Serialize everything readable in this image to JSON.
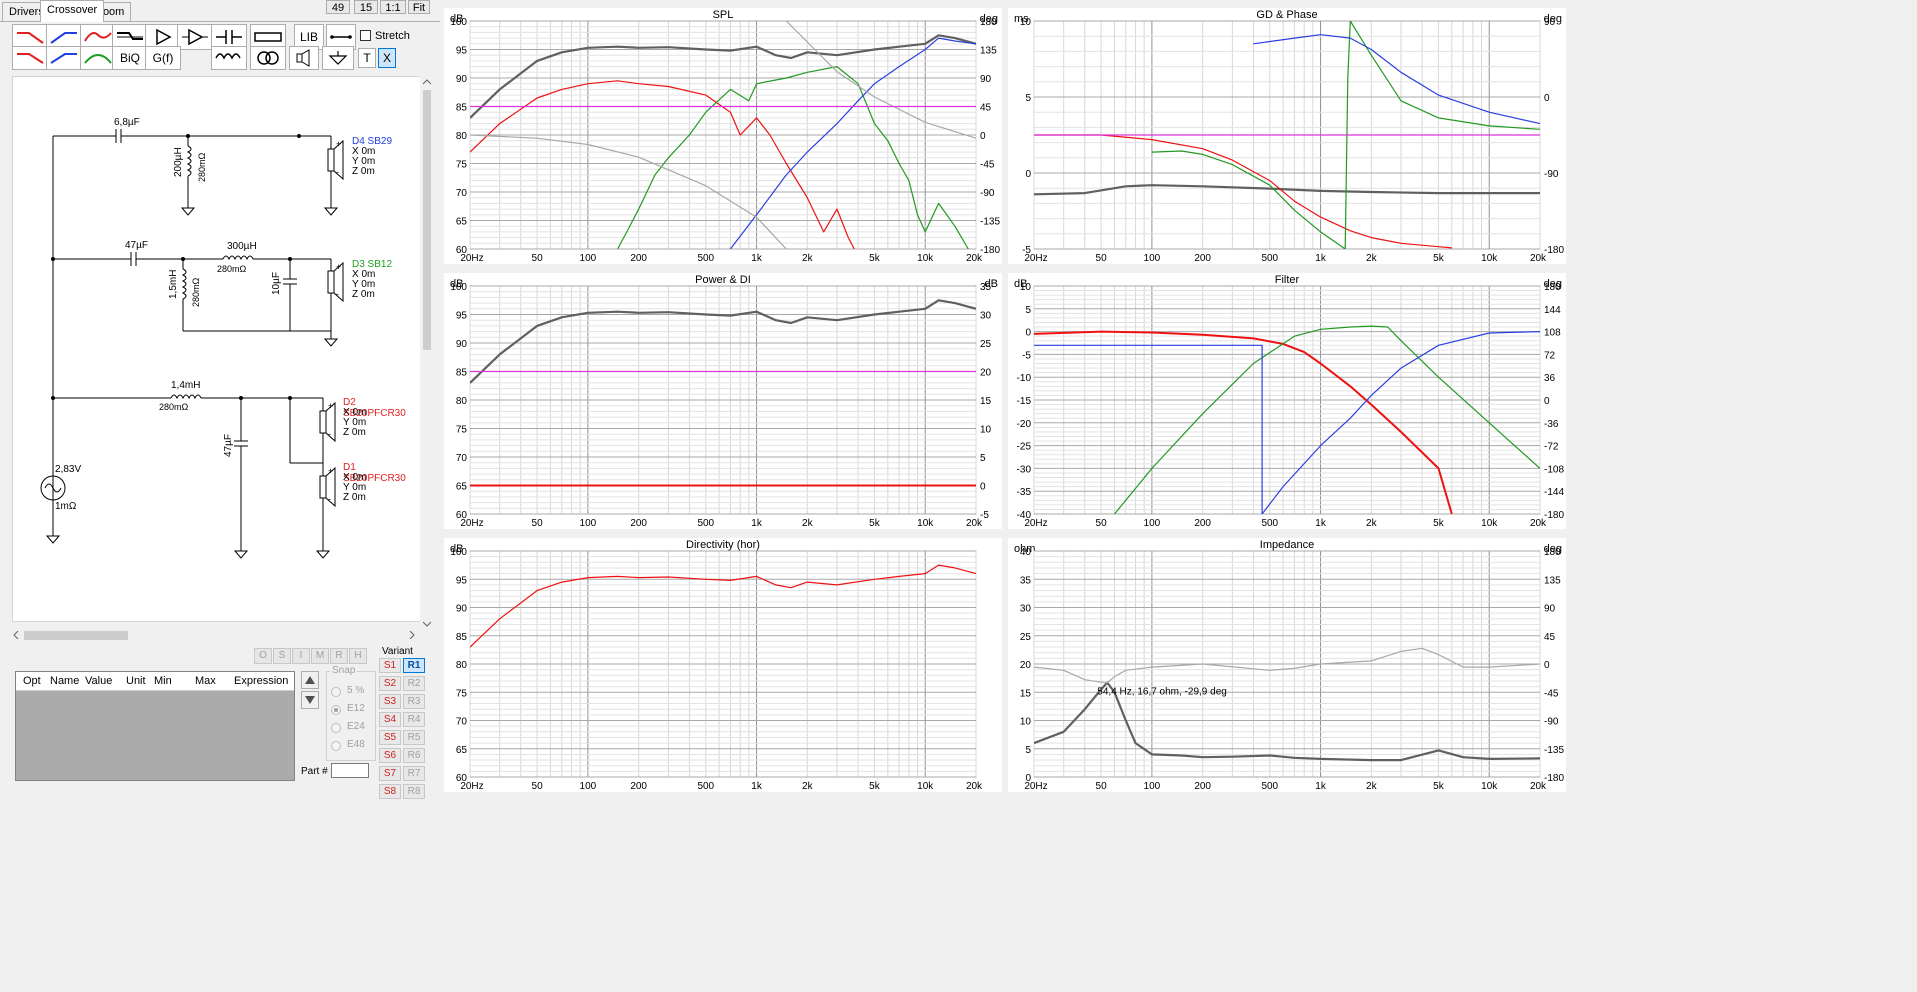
{
  "tabs": [
    "Drivers",
    "Crossover",
    "Room"
  ],
  "active_tab": "Crossover",
  "top_buttons": [
    "49",
    "15",
    "1:1",
    "Fit"
  ],
  "toolbar": {
    "lib": "LIB",
    "biq": "BiQ",
    "gf": "G(f)",
    "t": "T",
    "x": "X",
    "stretch": "Stretch"
  },
  "schematic": {
    "c1": "6,8µF",
    "l1": "200µH",
    "l1r": "280mΩ",
    "d4_name": "D4 SB29",
    "c2": "47µF",
    "l2": "300µH",
    "l2r": "280mΩ",
    "l3": "1,5mH",
    "l3r": "280mΩ",
    "c3": "10µF",
    "d3_name": "D3 SB12",
    "l4": "1,4mH",
    "l4r": "280mΩ",
    "c4": "47µF",
    "d2_name": "D2 SB20PFCR30",
    "d1_name": "D1 SB20PFCR30",
    "src_v": "2,83V",
    "src_r": "1mΩ",
    "xyz": [
      "X 0m",
      "Y 0m",
      "Z 0m"
    ],
    "plus": "+",
    "minus": "-"
  },
  "opt_buttons": [
    "O",
    "S",
    "I",
    "M",
    "R",
    "H"
  ],
  "table_headers": [
    "Opt",
    "Name",
    "Value",
    "Unit",
    "Min",
    "Max",
    "Expression"
  ],
  "snap": {
    "label": "Snap",
    "options": [
      "5 %",
      "E12",
      "E24",
      "E48"
    ],
    "selected": "E12"
  },
  "part_label": "Part #",
  "variant": {
    "label": "Variant",
    "s": [
      "S1",
      "S2",
      "S3",
      "S4",
      "S5",
      "S6",
      "S7",
      "S8"
    ],
    "r": [
      "R1",
      "R2",
      "R3",
      "R4",
      "R5",
      "R6",
      "R7",
      "R8"
    ],
    "selected": "R1"
  },
  "x_ticks": [
    "20Hz",
    "50",
    "100",
    "200",
    "500",
    "1k",
    "2k",
    "5k",
    "10k",
    "20k"
  ],
  "colors": {
    "gray": "#606060",
    "red": "#ee1111",
    "green": "#229922",
    "blue": "#2b3fe0",
    "magenta": "#dd33dd",
    "lightgray": "#a8a8a8"
  },
  "chart_data": [
    {
      "type": "line",
      "title": "SPL",
      "left_unit": "dB",
      "right_unit": "deg",
      "xlim": [
        20,
        20000
      ],
      "x_scale": "log",
      "ylim": [
        60,
        100
      ],
      "y2lim": [
        -180,
        180
      ],
      "y_ticks": [
        "100",
        "95",
        "90",
        "85",
        "80",
        "75",
        "70",
        "65",
        "60"
      ],
      "y2_ticks": [
        "180",
        "135",
        "90",
        "45",
        "0",
        "-45",
        "-90",
        "-135",
        "-180"
      ],
      "series": [
        {
          "color": "gray",
          "x": [
            20,
            30,
            50,
            70,
            100,
            150,
            200,
            300,
            500,
            700,
            1000,
            1300,
            1600,
            2000,
            3000,
            5000,
            7000,
            10000,
            12000,
            15000,
            20000
          ],
          "y": [
            83,
            88,
            93,
            94.5,
            95.3,
            95.5,
            95.3,
            95.4,
            95,
            94.8,
            95.5,
            94,
            93.5,
            94.5,
            94,
            95,
            95.5,
            96,
            97.5,
            97,
            96
          ]
        },
        {
          "color": "red",
          "x": [
            20,
            30,
            50,
            70,
            100,
            150,
            200,
            300,
            500,
            700,
            800,
            1000,
            1200,
            1500,
            2000,
            2500,
            3000,
            3500,
            3800
          ],
          "y": [
            77,
            82,
            86.5,
            88,
            89,
            89.5,
            89,
            88.5,
            87,
            84,
            80,
            83,
            80,
            75,
            69,
            63,
            67,
            62,
            60
          ]
        },
        {
          "color": "green",
          "x": [
            150,
            170,
            200,
            250,
            300,
            400,
            500,
            700,
            900,
            1000,
            1500,
            2000,
            3000,
            4000,
            5000,
            6000,
            7000,
            8000,
            9000,
            10000,
            12000,
            15000,
            18000
          ],
          "y": [
            60,
            63,
            67,
            73,
            76,
            80,
            84,
            88,
            86,
            89,
            90,
            91,
            92,
            89,
            82,
            79,
            75,
            72,
            66,
            63,
            68,
            64,
            60
          ]
        },
        {
          "color": "blue",
          "x": [
            700,
            1000,
            1500,
            2000,
            3000,
            4000,
            5000,
            7000,
            10000,
            12000,
            15000,
            20000
          ],
          "y": [
            60,
            66,
            73,
            77,
            82,
            86,
            89,
            92,
            95,
            97,
            96.5,
            96
          ]
        },
        {
          "color": "lightgray",
          "axis": "y2",
          "x": [
            20,
            50,
            100,
            200,
            500,
            1000,
            1500,
            1500,
            3000,
            5000,
            10000,
            20000
          ],
          "y": [
            0,
            -5,
            -15,
            -35,
            -80,
            -130,
            -180,
            180,
            100,
            60,
            20,
            -5
          ]
        },
        {
          "color": "magenta",
          "x": [
            20,
            20000
          ],
          "y": [
            85,
            85
          ]
        }
      ]
    },
    {
      "type": "line",
      "title": "GD & Phase",
      "left_unit": "ms",
      "right_unit": "deg",
      "xlim": [
        20,
        20000
      ],
      "x_scale": "log",
      "ylim": [
        -5,
        15
      ],
      "y2lim": [
        -180,
        180
      ],
      "y_ticks": [
        "10",
        "5",
        "0",
        "-5"
      ],
      "y2_ticks": [
        "90",
        "0",
        "-90",
        "-180"
      ],
      "series": [
        {
          "color": "gray",
          "x": [
            20,
            40,
            70,
            100,
            200,
            500,
            1000,
            2000,
            5000,
            10000,
            20000
          ],
          "y": [
            -0.2,
            -0.1,
            0.5,
            0.6,
            0.5,
            0.3,
            0.1,
            0,
            -0.1,
            -0.1,
            -0.1
          ]
        },
        {
          "color": "red",
          "x": [
            20,
            50,
            100,
            200,
            300,
            500,
            700,
            1000,
            1500,
            2000,
            3000,
            5000,
            6000
          ],
          "y": [
            5,
            5,
            4.6,
            3.8,
            2.8,
            1,
            -0.8,
            -2.2,
            -3.4,
            -4,
            -4.5,
            -4.8,
            -4.9
          ]
        },
        {
          "color": "green",
          "x": [
            100,
            150,
            200,
            300,
            500,
            700,
            1000,
            1400,
            1450,
            1500,
            2000,
            3000,
            5000,
            10000,
            20000
          ],
          "y": [
            3.5,
            3.6,
            3.3,
            2.4,
            0.6,
            -1.6,
            -3.5,
            -5,
            10,
            15,
            12,
            8,
            6.5,
            5.8,
            5.5
          ]
        },
        {
          "color": "blue",
          "x": [
            400,
            700,
            1000,
            1500,
            2000,
            3000,
            5000,
            10000,
            20000
          ],
          "y": [
            13,
            13.5,
            13.8,
            13.5,
            12.5,
            10.5,
            8.5,
            7,
            6
          ]
        },
        {
          "color": "magenta",
          "x": [
            20,
            20000
          ],
          "y": [
            5,
            5
          ]
        }
      ]
    },
    {
      "type": "line",
      "title": "Power & DI",
      "left_unit": "dB",
      "right_unit": "dB",
      "xlim": [
        20,
        20000
      ],
      "x_scale": "log",
      "ylim": [
        60,
        100
      ],
      "y2lim": [
        -5,
        35
      ],
      "y_ticks": [
        "100",
        "95",
        "90",
        "85",
        "80",
        "75",
        "70",
        "65",
        "60"
      ],
      "y2_ticks": [
        "35",
        "30",
        "25",
        "20",
        "15",
        "10",
        "5",
        "0",
        "-5"
      ],
      "series": [
        {
          "color": "gray",
          "x": [
            20,
            30,
            50,
            70,
            100,
            150,
            200,
            300,
            500,
            700,
            1000,
            1300,
            1600,
            2000,
            3000,
            5000,
            7000,
            10000,
            12000,
            15000,
            20000
          ],
          "y": [
            83,
            88,
            93,
            94.5,
            95.3,
            95.5,
            95.3,
            95.4,
            95,
            94.8,
            95.5,
            94,
            93.5,
            94.5,
            94,
            95,
            95.5,
            96,
            97.5,
            97,
            96
          ]
        },
        {
          "color": "magenta",
          "x": [
            20,
            20000
          ],
          "y": [
            85,
            85
          ]
        },
        {
          "color": "red",
          "x": [
            20,
            20000
          ],
          "y": [
            65,
            65
          ]
        }
      ]
    },
    {
      "type": "line",
      "title": "Filter",
      "left_unit": "dB",
      "right_unit": "deg",
      "xlim": [
        20,
        20000
      ],
      "x_scale": "log",
      "ylim": [
        -40,
        10
      ],
      "y2lim": [
        -180,
        180
      ],
      "y_ticks": [
        "10",
        "5",
        "0",
        "-5",
        "-10",
        "-15",
        "-20",
        "-25",
        "-30",
        "-35",
        "-40"
      ],
      "y2_ticks": [
        "180",
        "144",
        "108",
        "72",
        "36",
        "0",
        "-36",
        "-72",
        "-108",
        "-144",
        "-180"
      ],
      "series": [
        {
          "color": "red",
          "x": [
            20,
            50,
            100,
            200,
            400,
            600,
            800,
            1000,
            1500,
            2000,
            3000,
            5000,
            6000
          ],
          "y": [
            -0.5,
            0,
            -0.2,
            -0.7,
            -1.5,
            -2.7,
            -4.5,
            -7,
            -12,
            -16,
            -22,
            -30,
            -40
          ]
        },
        {
          "color": "green",
          "x": [
            60,
            100,
            200,
            400,
            700,
            1000,
            1500,
            2000,
            2500,
            3000,
            5000,
            10000,
            20000
          ],
          "y": [
            -40,
            -30,
            -18,
            -7,
            -1,
            0.5,
            1,
            1.2,
            1,
            -2,
            -10,
            -20,
            -30
          ]
        },
        {
          "color": "blue",
          "x": [
            450,
            600,
            1000,
            1500,
            2000,
            3000,
            5000,
            10000,
            20000
          ],
          "y": [
            -40,
            -34,
            -25,
            -19,
            -14,
            -8,
            -3,
            -0.3,
            0
          ]
        },
        {
          "color": "blue",
          "x": [
            20,
            450,
            450
          ],
          "y": [
            -3,
            -3,
            -40
          ]
        }
      ]
    },
    {
      "type": "line",
      "title": "Directivity (hor)",
      "left_unit": "dB",
      "right_unit": "",
      "xlim": [
        20,
        20000
      ],
      "x_scale": "log",
      "ylim": [
        60,
        100
      ],
      "y_ticks": [
        "100",
        "95",
        "90",
        "85",
        "80",
        "75",
        "70",
        "65",
        "60"
      ],
      "series": [
        {
          "color": "red",
          "x": [
            20,
            30,
            50,
            70,
            100,
            150,
            200,
            300,
            500,
            700,
            1000,
            1300,
            1600,
            2000,
            3000,
            5000,
            7000,
            10000,
            12000,
            15000,
            20000
          ],
          "y": [
            83,
            88,
            93,
            94.5,
            95.3,
            95.5,
            95.3,
            95.4,
            95,
            94.8,
            95.5,
            94,
            93.5,
            94.5,
            94,
            95,
            95.5,
            96,
            97.5,
            97,
            96
          ]
        }
      ]
    },
    {
      "type": "line",
      "title": "Impedance",
      "left_unit": "ohm",
      "right_unit": "deg",
      "xlim": [
        20,
        20000
      ],
      "x_scale": "log",
      "ylim": [
        0,
        40
      ],
      "y2lim": [
        -180,
        180
      ],
      "y_ticks": [
        "40",
        "35",
        "30",
        "25",
        "20",
        "15",
        "10",
        "5",
        "0"
      ],
      "y2_ticks": [
        "180",
        "135",
        "90",
        "45",
        "0",
        "-45",
        "-90",
        "-135",
        "-180"
      ],
      "annotation": "54,4 Hz, 16,7 ohm, -29,9 deg",
      "series": [
        {
          "color": "gray",
          "x": [
            20,
            30,
            40,
            50,
            54.4,
            60,
            70,
            80,
            100,
            150,
            200,
            300,
            500,
            700,
            1000,
            2000,
            3000,
            5000,
            7000,
            10000,
            20000
          ],
          "y": [
            6,
            8,
            12,
            15.5,
            16.7,
            15,
            10,
            6,
            4,
            3.8,
            3.5,
            3.6,
            3.8,
            3.4,
            3.2,
            3,
            3,
            4.7,
            3.5,
            3.2,
            3.3
          ]
        },
        {
          "color": "lightgray",
          "axis": "y2",
          "x": [
            20,
            30,
            40,
            50,
            54.4,
            60,
            70,
            100,
            200,
            500,
            700,
            1000,
            2000,
            3000,
            4000,
            5000,
            7000,
            10000,
            20000
          ],
          "y": [
            -5,
            -10,
            -25,
            -29,
            -29.9,
            -20,
            -10,
            -5,
            0,
            -10,
            -7,
            0,
            5,
            20,
            25,
            15,
            -5,
            -5,
            0
          ]
        }
      ]
    }
  ]
}
